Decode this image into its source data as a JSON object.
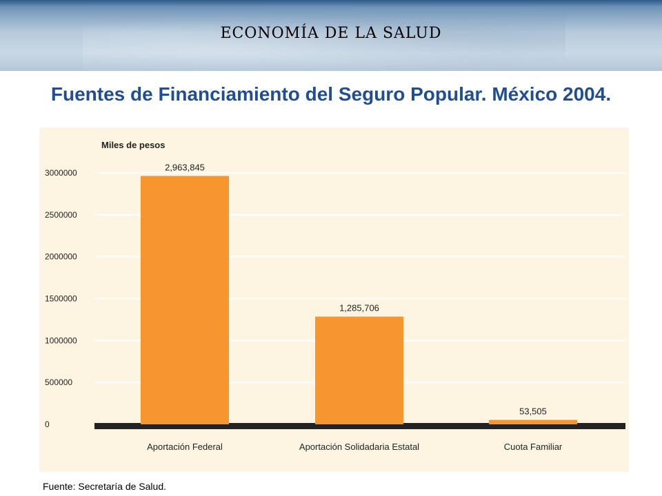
{
  "header": {
    "title": "ECONOMÍA DE LA SALUD"
  },
  "slide": {
    "title": "Fuentes de Financiamiento del Seguro Popular. México 2004."
  },
  "footer": {
    "source": "Fuente: Secretaría de Salud."
  },
  "colors": {
    "bar": "#f7962e",
    "title": "#1f4e94",
    "panel": "#fdf5e2",
    "baseline": "#222222"
  },
  "chart_data": {
    "type": "bar",
    "ylabel": "Miles de pesos",
    "categories": [
      "Aportación Federal",
      "Aportación Solidadaria Estatal",
      "Cuota Familiar"
    ],
    "values": [
      2963845,
      1285706,
      53505
    ],
    "value_labels": [
      "2,963,845",
      "1,285,706",
      "53,505"
    ],
    "yticks": [
      0,
      500000,
      1000000,
      1500000,
      2000000,
      2500000,
      3000000
    ],
    "ytick_labels": [
      "0",
      "500000",
      "1000000",
      "1500000",
      "2000000",
      "2500000",
      "3000000"
    ],
    "ylim": [
      0,
      3000000
    ],
    "grid": true,
    "legend": "none"
  }
}
